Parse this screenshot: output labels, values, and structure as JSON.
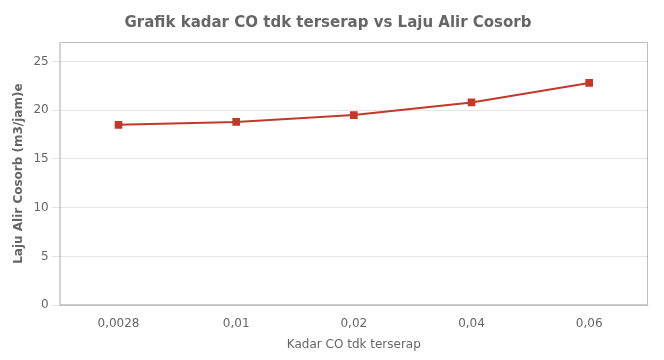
{
  "chart_data": {
    "type": "line",
    "title": "Grafik kadar CO tdk terserap vs Laju Alir Cosorb",
    "x_label": "Kadar CO tdk terserap",
    "y_label": "Laju Alir Cosorb (m3/jam)e",
    "categories": [
      "0,0028",
      "0,01",
      "0,02",
      "0,04",
      "0,06"
    ],
    "values": [
      18.5,
      18.8,
      19.5,
      20.8,
      22.8
    ],
    "color": "#c0392b",
    "marker": "square",
    "ylim": [
      0,
      27
    ],
    "yticks": [
      0,
      5,
      10,
      15,
      20,
      25
    ],
    "grid": true
  }
}
